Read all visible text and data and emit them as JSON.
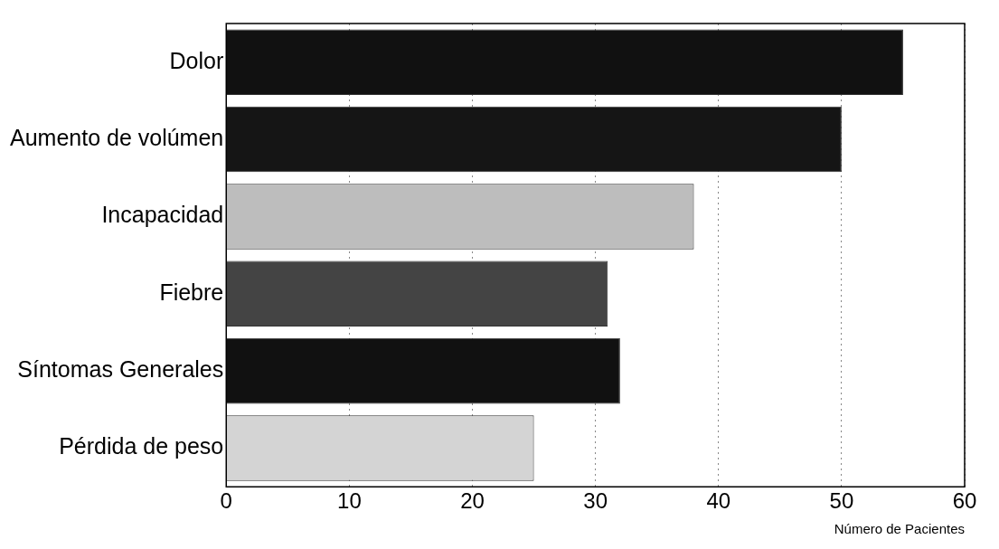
{
  "chart_data": {
    "type": "bar",
    "orientation": "horizontal",
    "xlabel": "Número de Pacientes",
    "categories": [
      "Dolor",
      "Aumento de volúmen",
      "Incapacidad",
      "Fiebre",
      "Síntomas Generales",
      "Pérdida de peso"
    ],
    "values": [
      55,
      50,
      38,
      31,
      32,
      25
    ],
    "colors": [
      "#111111",
      "#151515",
      "#bdbdbd",
      "#444444",
      "#111111",
      "#d4d4d4"
    ],
    "xlim": [
      0,
      60
    ],
    "xticks": [
      0,
      10,
      20,
      30,
      40,
      50,
      60
    ],
    "grid": "x"
  }
}
